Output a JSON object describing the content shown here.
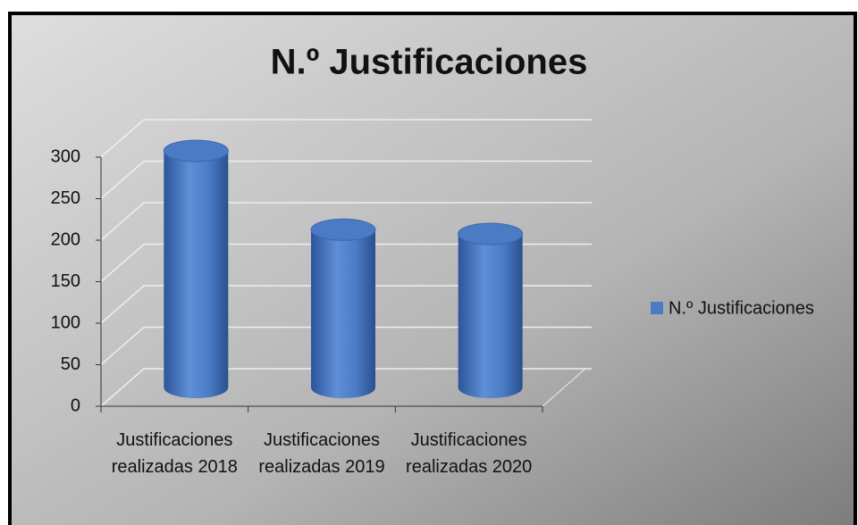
{
  "chart_data": {
    "type": "bar3d",
    "title": "N.º Justificaciones",
    "categories": [
      "Justificaciones realizadas 2018",
      "Justificaciones realizadas 2019",
      "Justificaciones realizadas 2020"
    ],
    "series": [
      {
        "name": "N.º Justificaciones",
        "color": "#4a7bc4",
        "values": [
          285,
          190,
          185
        ]
      }
    ],
    "ylim": [
      0,
      300
    ],
    "yticks": [
      0,
      50,
      100,
      150,
      200,
      250,
      300
    ],
    "grid": true,
    "legend": "right"
  }
}
